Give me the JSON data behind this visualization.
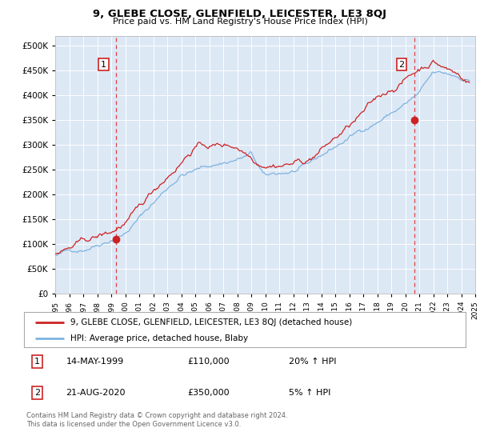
{
  "title": "9, GLEBE CLOSE, GLENFIELD, LEICESTER, LE3 8QJ",
  "subtitle": "Price paid vs. HM Land Registry's House Price Index (HPI)",
  "legend_line1": "9, GLEBE CLOSE, GLENFIELD, LEICESTER, LE3 8QJ (detached house)",
  "legend_line2": "HPI: Average price, detached house, Blaby",
  "ann1": {
    "num": "1",
    "date": "14-MAY-1999",
    "price": "£110,000",
    "hpi": "20% ↑ HPI",
    "x_year": 1999.37,
    "y_val": 110000
  },
  "ann2": {
    "num": "2",
    "date": "21-AUG-2020",
    "price": "£350,000",
    "hpi": "5% ↑ HPI",
    "x_year": 2020.64,
    "y_val": 350000
  },
  "footer": "Contains HM Land Registry data © Crown copyright and database right 2024.\nThis data is licensed under the Open Government Licence v3.0.",
  "ylim": [
    0,
    520000
  ],
  "yticks": [
    0,
    50000,
    100000,
    150000,
    200000,
    250000,
    300000,
    350000,
    400000,
    450000,
    500000
  ],
  "hpi_color": "#7fb3e0",
  "price_color": "#cc2222",
  "vline_color": "#dd4444",
  "plot_bg": "#dde8f5",
  "grid_color": "#ffffff",
  "xlim_left": 1995,
  "xlim_right": 2025
}
